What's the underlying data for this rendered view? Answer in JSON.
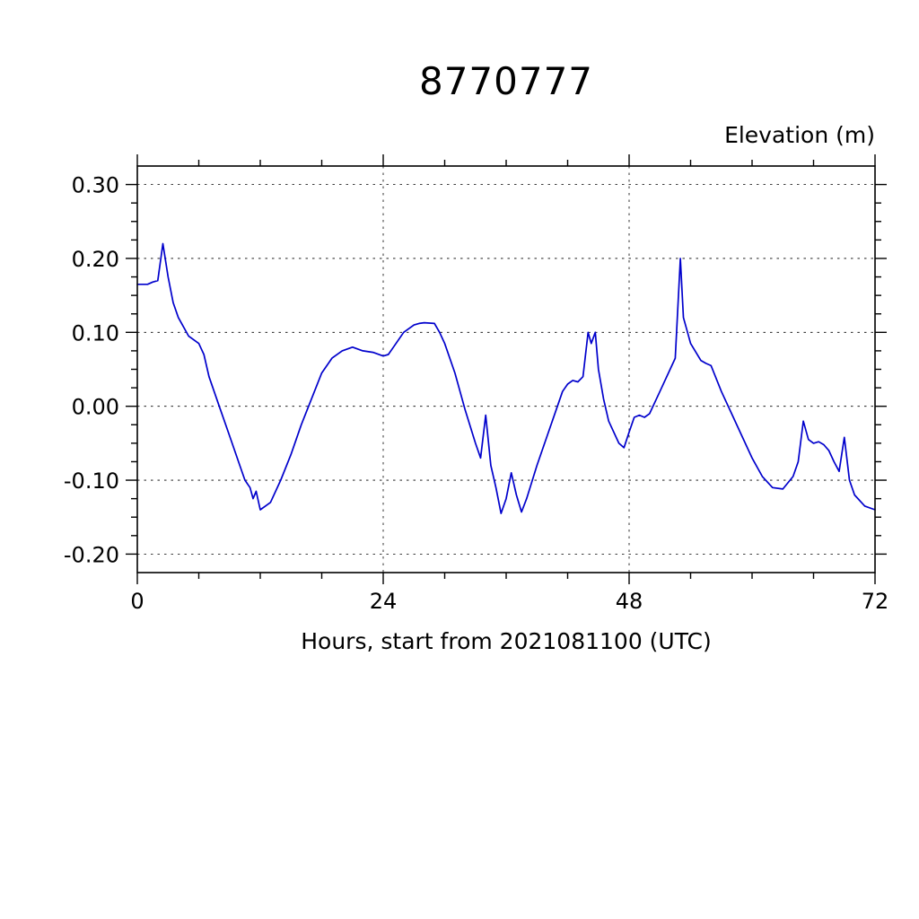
{
  "title": "8770777",
  "y_axis_title": "Elevation (m)",
  "x_axis_title": "Hours, start from 2021081100 (UTC)",
  "chart_data": {
    "type": "line",
    "title": "8770777",
    "xlabel": "Hours, start from 2021081100 (UTC)",
    "ylabel": "Elevation (m)",
    "series_name": "elevation",
    "line_color": "#0000cc",
    "grid": "dashed",
    "legend": "none",
    "xlim": [
      0,
      72
    ],
    "ylim": [
      -0.225,
      0.325
    ],
    "x_major_ticks": [
      0,
      24,
      48,
      72
    ],
    "x_tick_labels": [
      "0",
      "24",
      "48",
      "72"
    ],
    "x_minor_step": 6,
    "y_major_ticks": [
      -0.2,
      -0.1,
      0.0,
      0.1,
      0.2,
      0.3
    ],
    "y_tick_labels": [
      "-0.20",
      "-0.10",
      "0.00",
      "0.10",
      "0.20",
      "0.30"
    ],
    "y_minor_step": 0.025,
    "x_grid_at": [
      24,
      48
    ],
    "y_grid_at": [
      -0.2,
      -0.1,
      0.0,
      0.1,
      0.2,
      0.3
    ],
    "x": [
      0,
      1,
      1.5,
      2,
      2.5,
      3,
      3.5,
      4,
      5,
      6,
      6.5,
      7,
      8,
      9,
      10,
      10.5,
      11,
      11.3,
      11.6,
      12,
      12.5,
      13,
      14,
      15,
      16,
      17,
      18,
      19,
      20,
      21,
      22,
      23,
      24,
      24.5,
      25,
      26,
      27,
      27.5,
      28,
      29,
      29.5,
      30,
      31,
      32,
      33,
      33.5,
      34,
      34.5,
      35,
      35.5,
      36,
      36.5,
      37,
      37.5,
      38,
      39,
      40,
      41,
      41.5,
      42,
      42.5,
      43,
      43.5,
      44,
      44.3,
      44.7,
      45,
      45.5,
      46,
      47,
      47.5,
      48,
      48.5,
      49,
      49.5,
      50,
      51,
      52,
      52.5,
      53,
      53.3,
      53.7,
      54,
      55,
      55.5,
      56,
      57,
      58,
      59,
      60,
      61,
      62,
      63,
      64,
      64.5,
      65,
      65.5,
      66,
      66.5,
      67,
      67.5,
      68,
      68.5,
      69,
      69.5,
      70,
      71,
      72
    ],
    "y": [
      0.165,
      0.165,
      0.168,
      0.17,
      0.22,
      0.175,
      0.14,
      0.12,
      0.095,
      0.085,
      0.07,
      0.04,
      0.0,
      -0.04,
      -0.08,
      -0.1,
      -0.11,
      -0.125,
      -0.115,
      -0.14,
      -0.135,
      -0.13,
      -0.1,
      -0.065,
      -0.025,
      0.01,
      0.045,
      0.065,
      0.075,
      0.08,
      0.075,
      0.073,
      0.068,
      0.07,
      0.08,
      0.1,
      0.11,
      0.112,
      0.113,
      0.112,
      0.1,
      0.085,
      0.045,
      -0.005,
      -0.05,
      -0.07,
      -0.012,
      -0.08,
      -0.11,
      -0.145,
      -0.125,
      -0.09,
      -0.12,
      -0.143,
      -0.125,
      -0.08,
      -0.04,
      0.0,
      0.02,
      0.03,
      0.035,
      0.033,
      0.04,
      0.1,
      0.085,
      0.1,
      0.05,
      0.01,
      -0.02,
      -0.05,
      -0.056,
      -0.035,
      -0.015,
      -0.012,
      -0.015,
      -0.01,
      0.02,
      0.05,
      0.065,
      0.2,
      0.12,
      0.1,
      0.085,
      0.062,
      0.058,
      0.055,
      0.02,
      -0.01,
      -0.04,
      -0.07,
      -0.095,
      -0.11,
      -0.112,
      -0.095,
      -0.075,
      -0.02,
      -0.045,
      -0.05,
      -0.048,
      -0.052,
      -0.06,
      -0.075,
      -0.088,
      -0.042,
      -0.1,
      -0.12,
      -0.135,
      -0.14
    ]
  }
}
